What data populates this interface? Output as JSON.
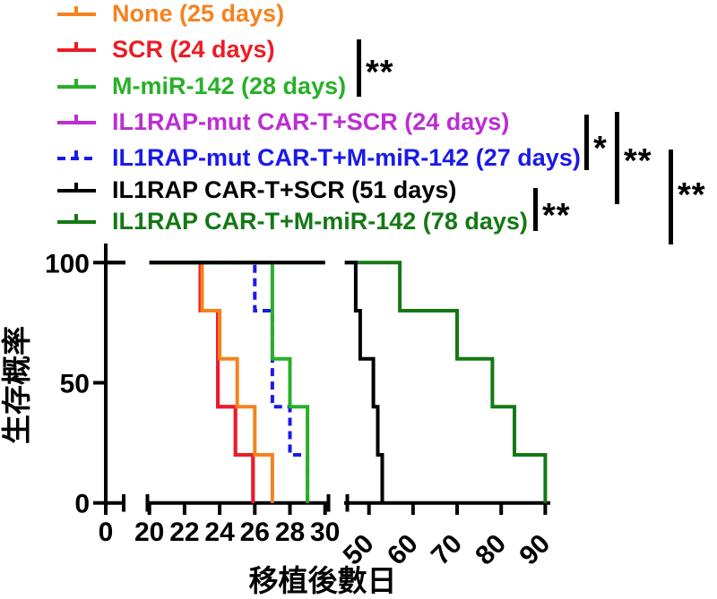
{
  "chart_data": {
    "type": "line",
    "subtype": "kaplan-meier-survival",
    "xlabel": "移植後數日",
    "ylabel": "生存概率",
    "y_axis": {
      "ticks": [
        0,
        50,
        100
      ],
      "range": [
        0,
        100
      ]
    },
    "x_axis": {
      "broken": true,
      "segments": [
        {
          "ticks": [
            0
          ]
        },
        {
          "ticks": [
            20,
            22,
            24,
            26,
            28,
            30
          ],
          "rotated": false
        },
        {
          "ticks": [
            50,
            60,
            70,
            80,
            90
          ],
          "rotated": true
        }
      ]
    },
    "series": [
      {
        "key": "none",
        "label": "None (25 days)",
        "median_days": 25,
        "color": "#F5821E",
        "dashed": false,
        "events": [
          [
            23,
            80
          ],
          [
            24,
            60
          ],
          [
            25,
            40
          ],
          [
            26,
            20
          ],
          [
            27,
            0
          ]
        ]
      },
      {
        "key": "scr",
        "label": "SCR (24 days)",
        "median_days": 24,
        "color": "#EC1C24",
        "dashed": false,
        "dx": -2,
        "events": [
          [
            23,
            80
          ],
          [
            24,
            40
          ],
          [
            25,
            20
          ],
          [
            26,
            0
          ]
        ]
      },
      {
        "key": "m-mir-142",
        "label": "M-miR-142 (28 days)",
        "median_days": 28,
        "color": "#28B028",
        "dashed": false,
        "events": [
          [
            27,
            60
          ],
          [
            28,
            40
          ],
          [
            29,
            0
          ]
        ]
      },
      {
        "key": "il1rap-mut-car-t-scr",
        "label": "IL1RAP-mut CAR-T+SCR (24 days)",
        "median_days": 24,
        "color": "#BB2ED2",
        "dashed": false,
        "dx": -2,
        "events": [
          [
            23,
            80
          ],
          [
            24,
            40
          ],
          [
            25,
            20
          ],
          [
            26,
            0
          ]
        ]
      },
      {
        "key": "il1rap-mut-car-t-m-mir-142",
        "label": "IL1RAP-mut CAR-T+M-miR-142 (27 days)",
        "median_days": 27,
        "color": "#1A1AE8",
        "dashed": true,
        "events": [
          [
            26,
            80
          ],
          [
            27,
            40
          ],
          [
            28,
            20
          ],
          [
            29,
            0
          ]
        ]
      },
      {
        "key": "il1rap-car-t-scr",
        "label": "IL1RAP CAR-T+SCR (51 days)",
        "median_days": 51,
        "color": "#000000",
        "dashed": false,
        "events": [
          [
            47,
            80
          ],
          [
            48,
            60
          ],
          [
            51,
            40
          ],
          [
            52,
            20
          ],
          [
            53,
            0
          ]
        ]
      },
      {
        "key": "il1rap-car-t-m-mir-142",
        "label": "IL1RAP CAR-T+M-miR-142 (78 days)",
        "median_days": 78,
        "color": "#147814",
        "dashed": false,
        "events": [
          [
            57,
            80
          ],
          [
            70,
            60
          ],
          [
            78,
            40
          ],
          [
            83,
            20
          ],
          [
            90,
            0
          ]
        ]
      }
    ],
    "draw_order": [
      3,
      1,
      0,
      4,
      2,
      6,
      5
    ],
    "annotations": [
      {
        "label": "**",
        "x": 398,
        "y1": 44,
        "y2": 108,
        "lx": 408,
        "ly": 62
      },
      {
        "label": "*",
        "x": 652,
        "y1": 128,
        "y2": 190,
        "lx": 662,
        "ly": 147
      },
      {
        "label": "**",
        "x": 686,
        "y1": 125,
        "y2": 228,
        "lx": 696,
        "ly": 161
      },
      {
        "label": "**",
        "x": 595,
        "y1": 210,
        "y2": 258,
        "lx": 605,
        "ly": 222
      },
      {
        "label": "**",
        "x": 746,
        "y1": 167,
        "y2": 273,
        "lx": 756,
        "ly": 199
      }
    ]
  },
  "legend": {
    "rows_top": [
      0,
      40,
      81,
      121,
      161,
      197,
      232
    ]
  }
}
